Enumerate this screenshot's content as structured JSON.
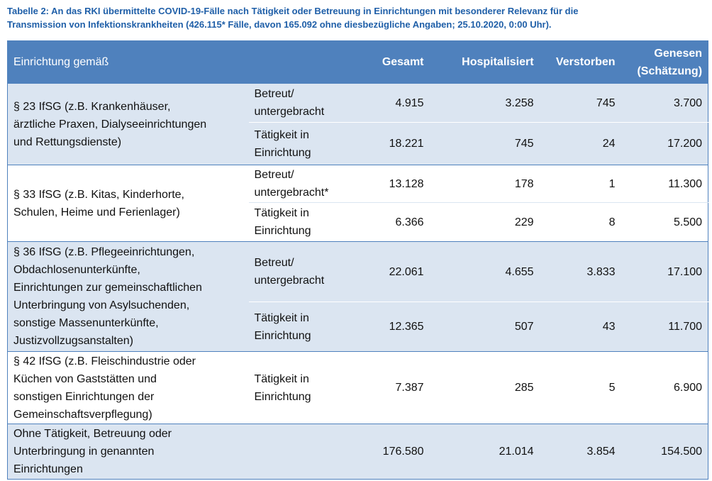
{
  "header": {
    "title": "Tabelle 2: An das RKI übermittelte COVID-19-Fälle nach Tätigkeit oder Betreuung in Einrichtungen mit besonderer Relevanz für die\nTransmission von Infektionskrankheiten (426.115* Fälle, davon 165.092 ohne diesbezügliche Angaben; 25.10.2020, 0:00 Uhr)."
  },
  "table": {
    "columns": [
      "Einrichtung gemäß",
      "Gesamt",
      "Hospitalisiert",
      "Verstorben",
      "Genesen\n(Schätzung)"
    ],
    "groups": [
      {
        "label": "§ 23 IfSG (z.B. Krankenhäuser,\närztliche Praxen, Dialyseeinrichtungen\nund Rettungsdienste)",
        "rows": [
          {
            "type": "Betreut/\nuntergebracht",
            "values": [
              "4.915",
              "3.258",
              "745",
              "3.700"
            ]
          },
          {
            "type": "Tätigkeit in\nEinrichtung",
            "values": [
              "18.221",
              "745",
              "24",
              "17.200"
            ]
          }
        ]
      },
      {
        "label": "§ 33 IfSG (z.B. Kitas, Kinderhorte,\nSchulen, Heime und Ferienlager)",
        "rows": [
          {
            "type": "Betreut/\nuntergebracht*",
            "values": [
              "13.128",
              "178",
              "1",
              "11.300"
            ]
          },
          {
            "type": "Tätigkeit in\nEinrichtung",
            "values": [
              "6.366",
              "229",
              "8",
              "5.500"
            ]
          }
        ]
      },
      {
        "label": "§ 36 IfSG (z.B. Pflegeeinrichtungen,\nObdachlosenunterkünfte,\nEinrichtungen zur gemeinschaftlichen\nUnterbringung von Asylsuchenden,\nsonstige Massenunterkünfte,\nJustizvollzugsanstalten)",
        "rows": [
          {
            "type": "Betreut/\nuntergebracht",
            "values": [
              "22.061",
              "4.655",
              "3.833",
              "17.100"
            ]
          },
          {
            "type": "Tätigkeit in\nEinrichtung",
            "values": [
              "12.365",
              "507",
              "43",
              "11.700"
            ]
          }
        ]
      },
      {
        "label": "§ 42 IfSG (z.B. Fleischindustrie oder\nKüchen von Gaststätten und\nsonstigen Einrichtungen der\nGemeinschaftsverpflegung)",
        "rows": [
          {
            "type": "Tätigkeit in\nEinrichtung",
            "values": [
              "7.387",
              "285",
              "5",
              "6.900"
            ]
          }
        ]
      },
      {
        "label": "Ohne Tätigkeit, Betreuung oder\nUnterbringung in genannten\nEinrichtungen",
        "rows": [
          {
            "values": [
              "176.580",
              "21.014",
              "3.854",
              "154.500"
            ]
          }
        ]
      }
    ]
  }
}
